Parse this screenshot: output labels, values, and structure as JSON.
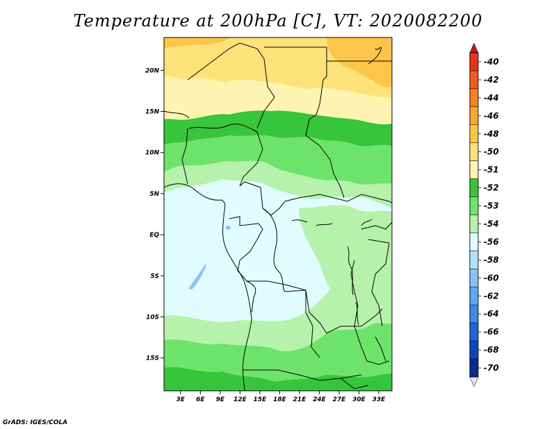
{
  "title": "Temperature at 200hPa [C], VT: 2020082200",
  "footer": "GrADS: IGES/COLA",
  "map": {
    "lat_range": [
      -19,
      24
    ],
    "lon_range": [
      0.5,
      35
    ],
    "lat_ticks": [
      {
        "value": 20,
        "label": "20N"
      },
      {
        "value": 15,
        "label": "15N"
      },
      {
        "value": 10,
        "label": "10N"
      },
      {
        "value": 5,
        "label": "5N"
      },
      {
        "value": 0,
        "label": "EQ"
      },
      {
        "value": -5,
        "label": "5S"
      },
      {
        "value": -10,
        "label": "10S"
      },
      {
        "value": -15,
        "label": "15S"
      }
    ],
    "lon_ticks": [
      {
        "value": 3,
        "label": "3E"
      },
      {
        "value": 6,
        "label": "6E"
      },
      {
        "value": 9,
        "label": "9E"
      },
      {
        "value": 12,
        "label": "12E"
      },
      {
        "value": 15,
        "label": "15E"
      },
      {
        "value": 18,
        "label": "18E"
      },
      {
        "value": 21,
        "label": "21E"
      },
      {
        "value": 24,
        "label": "24E"
      },
      {
        "value": 27,
        "label": "27E"
      },
      {
        "value": 30,
        "label": "30E"
      },
      {
        "value": 33,
        "label": "33E"
      }
    ]
  },
  "colorbar": {
    "levels": [
      {
        "label": "-40",
        "color": "#e8331a"
      },
      {
        "label": "-42",
        "color": "#f05a1e"
      },
      {
        "label": "-44",
        "color": "#f5831f"
      },
      {
        "label": "-46",
        "color": "#f9a62e"
      },
      {
        "label": "-48",
        "color": "#fbc649"
      },
      {
        "label": "-50",
        "color": "#fde27a"
      },
      {
        "label": "-51",
        "color": "#fef3b0"
      },
      {
        "label": "-52",
        "color": "#37c53b"
      },
      {
        "label": "-53",
        "color": "#6ee36b"
      },
      {
        "label": "-54",
        "color": "#b6f2ab"
      },
      {
        "label": "-56",
        "color": "#e1fcfe"
      },
      {
        "label": "-58",
        "color": "#b5e1fc"
      },
      {
        "label": "-60",
        "color": "#8ac3f7"
      },
      {
        "label": "-62",
        "color": "#5fa8f1"
      },
      {
        "label": "-64",
        "color": "#3c8ce6"
      },
      {
        "label": "-66",
        "color": "#2168d5"
      },
      {
        "label": "-68",
        "color": "#1146b6"
      },
      {
        "label": "-70",
        "color": "#0a2a8c"
      }
    ],
    "low_end_color": "#e6e0fa",
    "high_end_color": "#c21a12",
    "high_end_level": "-40",
    "low_end_level": "-70"
  }
}
